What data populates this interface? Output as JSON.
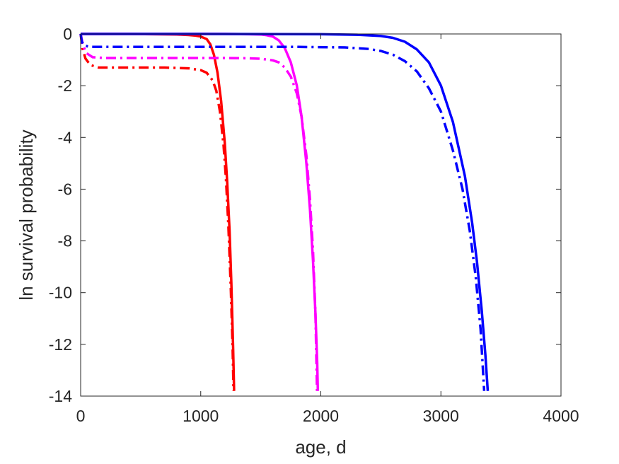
{
  "chart_data": {
    "type": "line",
    "title": "",
    "xlabel": "age, d",
    "ylabel": "ln survival probability",
    "xlim": [
      0,
      4000
    ],
    "ylim": [
      -14,
      0
    ],
    "xticks": [
      0,
      1000,
      2000,
      3000,
      4000
    ],
    "yticks": [
      0,
      -2,
      -4,
      -6,
      -8,
      -10,
      -12,
      -14
    ],
    "xtick_labels": [
      "0",
      "1000",
      "2000",
      "3000",
      "4000"
    ],
    "ytick_labels": [
      "0",
      "-2",
      "-4",
      "-6",
      "-8",
      "-10",
      "-12",
      "-14"
    ],
    "grid": false,
    "legend": "none",
    "series": [
      {
        "color": "#ff0000",
        "style": "solid",
        "x": [
          0,
          200,
          400,
          600,
          800,
          900,
          950,
          1000,
          1050,
          1080,
          1110,
          1140,
          1170,
          1200,
          1220,
          1240,
          1255,
          1270,
          1278
        ],
        "y": [
          0,
          0,
          0,
          -0.01,
          -0.02,
          -0.04,
          -0.06,
          -0.1,
          -0.2,
          -0.4,
          -0.8,
          -1.5,
          -2.6,
          -4.2,
          -5.7,
          -7.6,
          -9.6,
          -12.2,
          -13.8
        ]
      },
      {
        "color": "#ff0000",
        "style": "dashdot",
        "x": [
          0,
          15,
          40,
          80,
          150,
          300,
          500,
          700,
          900,
          1000,
          1050,
          1100,
          1130,
          1160,
          1190,
          1210,
          1230,
          1250,
          1265,
          1273
        ],
        "y": [
          0,
          -0.55,
          -0.95,
          -1.2,
          -1.3,
          -1.3,
          -1.3,
          -1.3,
          -1.33,
          -1.4,
          -1.5,
          -1.8,
          -2.2,
          -3.0,
          -4.3,
          -5.6,
          -7.4,
          -9.8,
          -12.0,
          -13.8
        ]
      },
      {
        "color": "#ff00ff",
        "style": "solid",
        "x": [
          0,
          400,
          800,
          1200,
          1400,
          1500,
          1550,
          1600,
          1650,
          1700,
          1750,
          1800,
          1840,
          1880,
          1910,
          1935,
          1955,
          1970,
          1975
        ],
        "y": [
          0,
          0,
          0,
          0,
          -0.01,
          -0.02,
          -0.05,
          -0.1,
          -0.25,
          -0.55,
          -1.1,
          -2.0,
          -3.2,
          -5.0,
          -6.8,
          -8.8,
          -10.8,
          -12.7,
          -13.8
        ]
      },
      {
        "color": "#ff00ff",
        "style": "dashdot",
        "x": [
          0,
          20,
          50,
          100,
          200,
          500,
          900,
          1200,
          1400,
          1500,
          1600,
          1650,
          1700,
          1750,
          1800,
          1840,
          1880,
          1910,
          1935,
          1955,
          1968
        ],
        "y": [
          0,
          -0.45,
          -0.75,
          -0.9,
          -0.93,
          -0.93,
          -0.93,
          -0.93,
          -0.94,
          -0.96,
          -1.02,
          -1.1,
          -1.3,
          -1.65,
          -2.3,
          -3.2,
          -4.7,
          -6.4,
          -8.4,
          -10.8,
          -13.8
        ]
      },
      {
        "color": "#0000ff",
        "style": "solid",
        "x": [
          0,
          1000,
          2000,
          2300,
          2500,
          2600,
          2700,
          2800,
          2900,
          3000,
          3100,
          3200,
          3260,
          3300,
          3340,
          3370,
          3390
        ],
        "y": [
          0,
          0,
          -0.01,
          -0.03,
          -0.08,
          -0.15,
          -0.3,
          -0.6,
          -1.1,
          -2.0,
          -3.4,
          -5.5,
          -7.3,
          -8.8,
          -10.7,
          -12.4,
          -13.8
        ]
      },
      {
        "color": "#0000ff",
        "style": "dashdot",
        "x": [
          0,
          10,
          30,
          80,
          300,
          1000,
          1800,
          2200,
          2400,
          2500,
          2600,
          2700,
          2800,
          2900,
          3000,
          3100,
          3180,
          3240,
          3290,
          3330,
          3360
        ],
        "y": [
          0,
          -0.3,
          -0.45,
          -0.5,
          -0.5,
          -0.5,
          -0.5,
          -0.52,
          -0.58,
          -0.66,
          -0.8,
          -1.05,
          -1.45,
          -2.1,
          -3.0,
          -4.5,
          -6.0,
          -7.6,
          -9.4,
          -11.4,
          -13.8
        ]
      }
    ]
  }
}
